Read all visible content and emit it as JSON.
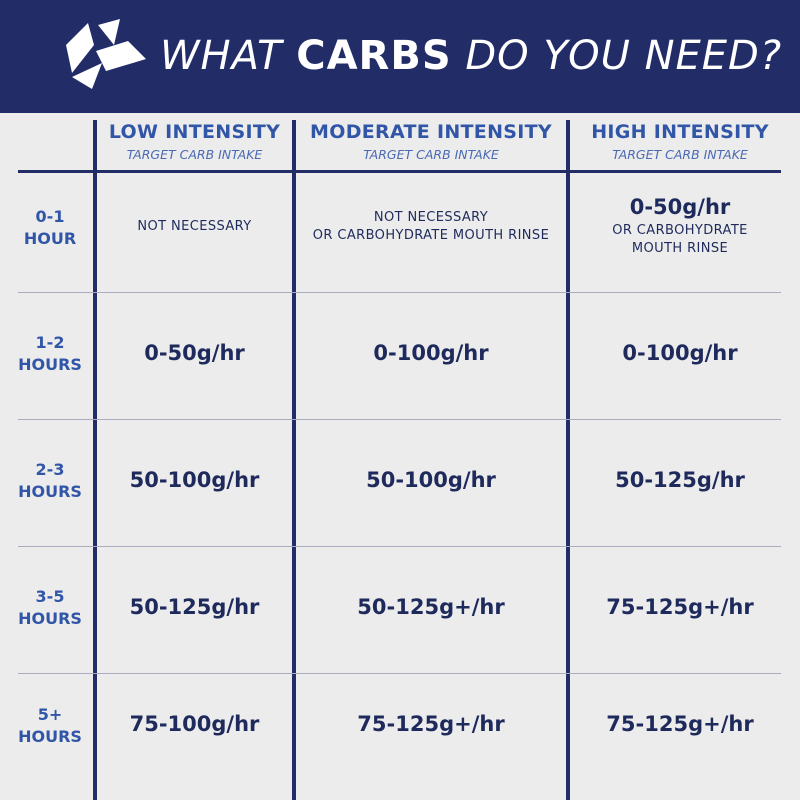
{
  "header": {
    "title_part1": "WHAT",
    "title_part2": "CARBS",
    "title_part3": "DO YOU NEED?",
    "logo_icon": "brand-logo-icon",
    "background_color": "#222d68"
  },
  "columns": [
    {
      "heading": "LOW INTENSITY",
      "subheading": "TARGET CARB INTAKE"
    },
    {
      "heading": "MODERATE INTENSITY",
      "subheading": "TARGET CARB INTAKE"
    },
    {
      "heading": "HIGH INTENSITY",
      "subheading": "TARGET CARB INTAKE"
    }
  ],
  "rows": [
    {
      "label_line1": "0-1",
      "label_line2": "HOUR",
      "low": {
        "line1": "NOT NECESSARY"
      },
      "moderate": {
        "line1": "NOT NECESSARY",
        "line2": "OR CARBOHYDRATE MOUTH RINSE"
      },
      "high": {
        "value": "0-50g/hr",
        "line1": "OR CARBOHYDRATE",
        "line2": "MOUTH RINSE"
      }
    },
    {
      "label_line1": "1-2",
      "label_line2": "HOURS",
      "low": "0-50g/hr",
      "moderate": "0-100g/hr",
      "high": "0-100g/hr"
    },
    {
      "label_line1": "2-3",
      "label_line2": "HOURS",
      "low": "50-100g/hr",
      "moderate": "50-100g/hr",
      "high": "50-125g/hr"
    },
    {
      "label_line1": "3-5",
      "label_line2": "HOURS",
      "low": "50-125g/hr",
      "moderate": "50-125g+/hr",
      "high": "75-125g+/hr"
    },
    {
      "label_line1": "5+",
      "label_line2": "HOURS",
      "low": "75-100g/hr",
      "moderate": "75-125g+/hr",
      "high": "75-125g+/hr"
    }
  ],
  "colors": {
    "navy": "#222d68",
    "accent_blue": "#3156a8",
    "background": "#ececec"
  }
}
